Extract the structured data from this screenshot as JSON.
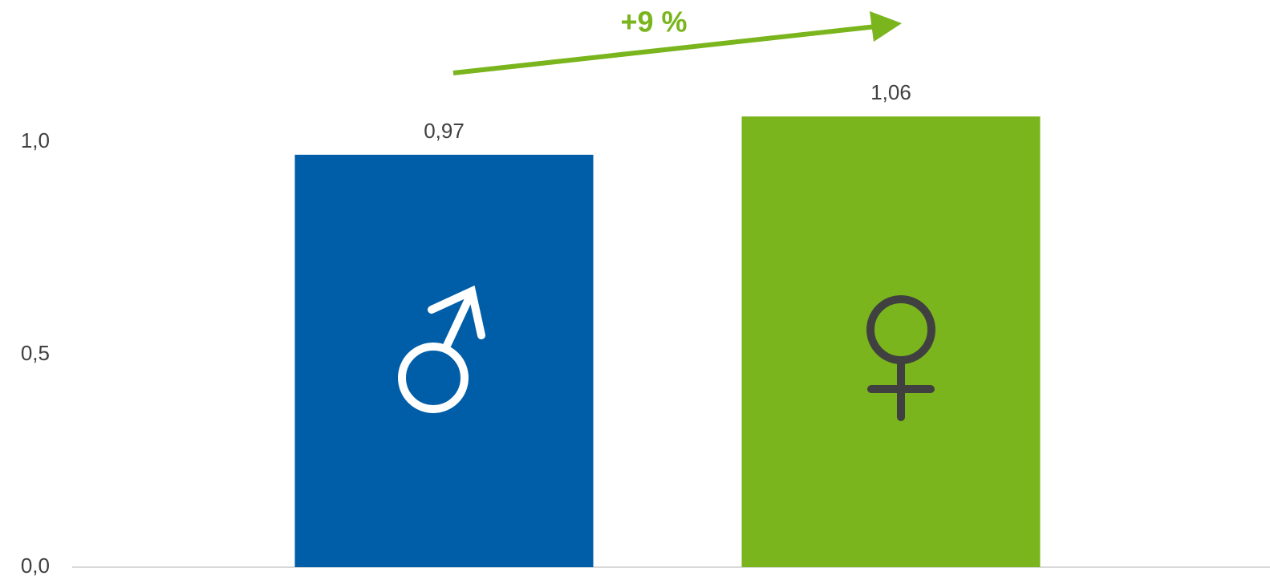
{
  "chart_data": {
    "type": "bar",
    "annotation": "+9 %",
    "categories": [
      null,
      null
    ],
    "values": [
      0.97,
      1.06
    ],
    "value_labels": [
      "0,97",
      "1,06"
    ],
    "colors": [
      "#005ea8",
      "#7ab51d"
    ],
    "annotation_color": "#7ab51d",
    "ylim": [
      0,
      1.3
    ],
    "yticks": [
      {
        "value": 0,
        "label": "0,0"
      },
      {
        "value": 0.5,
        "label": "0,5"
      },
      {
        "value": 1,
        "label": "1,0"
      }
    ],
    "grid": false
  }
}
